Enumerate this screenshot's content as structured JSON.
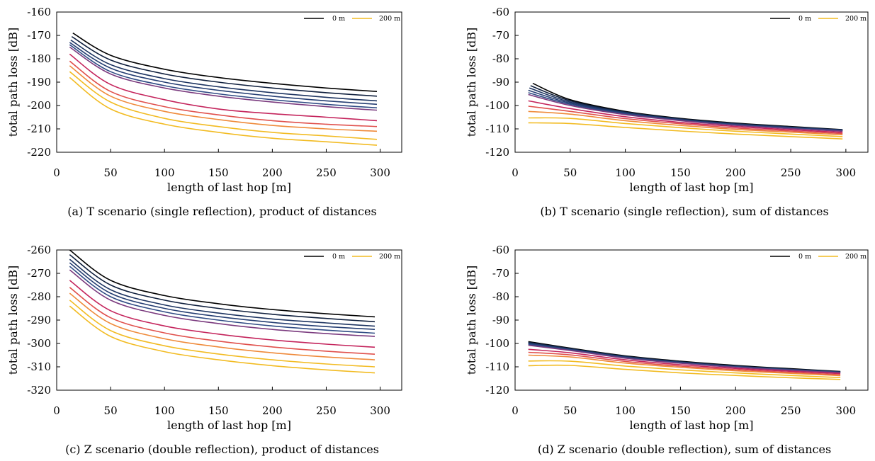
{
  "palette": [
    "#000000",
    "#0f1f3d",
    "#1d3461",
    "#253e73",
    "#2f4b84",
    "#7a3a7e",
    "#c4245c",
    "#e0504c",
    "#ef8a3a",
    "#f2bb22"
  ],
  "chart_data": [
    {
      "type": "line",
      "caption": "(a) T scenario (single reflection), product of distances",
      "xlabel": "length of last hop [m]",
      "ylabel": "total path loss [dB]",
      "xlim": [
        0,
        320
      ],
      "ylim": [
        -220,
        -160
      ],
      "xticks": [
        "0",
        "50",
        "100",
        "150",
        "200",
        "250",
        "300"
      ],
      "yticks": [
        "-160",
        "-170",
        "-180",
        "-190",
        "-200",
        "-210",
        "-220"
      ],
      "grid": false,
      "legend_position": "top-right",
      "legend": [
        "0 m",
        "200 m"
      ],
      "series": [
        {
          "x": [
            15,
            50,
            100,
            150,
            200,
            250,
            297
          ],
          "y": [
            -169,
            -178.5,
            -184.5,
            -188,
            -190.5,
            -192.5,
            -194
          ]
        },
        {
          "x": [
            14,
            50,
            100,
            150,
            200,
            250,
            297
          ],
          "y": [
            -170.5,
            -180.5,
            -186.5,
            -190,
            -192.5,
            -194.5,
            -196
          ]
        },
        {
          "x": [
            13,
            50,
            100,
            150,
            200,
            250,
            297
          ],
          "y": [
            -172,
            -182.5,
            -188.5,
            -192,
            -194.5,
            -196.5,
            -198
          ]
        },
        {
          "x": [
            12,
            50,
            100,
            150,
            200,
            250,
            297
          ],
          "y": [
            -173,
            -184,
            -190,
            -193.5,
            -196,
            -198,
            -199.5
          ]
        },
        {
          "x": [
            12,
            50,
            100,
            150,
            200,
            250,
            297
          ],
          "y": [
            -174,
            -185.5,
            -191.5,
            -195,
            -197.5,
            -199.5,
            -201
          ]
        },
        {
          "x": [
            12,
            50,
            100,
            150,
            200,
            250,
            297
          ],
          "y": [
            -175,
            -186.5,
            -192.5,
            -196,
            -198.5,
            -200.5,
            -202
          ]
        },
        {
          "x": [
            12,
            50,
            100,
            150,
            200,
            250,
            297
          ],
          "y": [
            -178,
            -191,
            -197.5,
            -201.5,
            -203.5,
            -205,
            -206.5
          ]
        },
        {
          "x": [
            12,
            50,
            100,
            150,
            200,
            250,
            297
          ],
          "y": [
            -181,
            -194,
            -200.5,
            -204,
            -206.5,
            -208,
            -209
          ]
        },
        {
          "x": [
            12,
            50,
            100,
            150,
            200,
            250,
            297
          ],
          "y": [
            -183,
            -196,
            -202.5,
            -206,
            -208.5,
            -210,
            -211
          ]
        },
        {
          "x": [
            12,
            50,
            100,
            150,
            200,
            250,
            297
          ],
          "y": [
            -185.5,
            -198.5,
            -205.5,
            -209,
            -211.5,
            -213,
            -214.5
          ]
        },
        {
          "x": [
            12,
            50,
            100,
            150,
            200,
            250,
            297
          ],
          "y": [
            -188,
            -201.5,
            -208,
            -211.5,
            -214,
            -215.5,
            -217
          ]
        }
      ]
    },
    {
      "type": "line",
      "caption": "(b) T scenario (single reflection), sum of distances",
      "xlabel": "length of last hop [m]",
      "ylabel": "total path loss [dB]",
      "xlim": [
        0,
        320
      ],
      "ylim": [
        -120,
        -60
      ],
      "xticks": [
        "0",
        "50",
        "100",
        "150",
        "200",
        "250",
        "300"
      ],
      "yticks": [
        "-60",
        "-70",
        "-80",
        "-90",
        "-100",
        "-110",
        "-120"
      ],
      "grid": false,
      "legend_position": "top-right",
      "legend": [
        "0 m",
        "200 m"
      ],
      "series": [
        {
          "x": [
            16,
            50,
            100,
            150,
            200,
            250,
            297
          ],
          "y": [
            -90.5,
            -97.5,
            -102.5,
            -105.5,
            -107.5,
            -109,
            -110.3
          ]
        },
        {
          "x": [
            14,
            50,
            100,
            150,
            200,
            250,
            297
          ],
          "y": [
            -91.5,
            -98,
            -102.8,
            -105.7,
            -107.7,
            -109.2,
            -110.4
          ]
        },
        {
          "x": [
            13,
            50,
            100,
            150,
            200,
            250,
            297
          ],
          "y": [
            -92.5,
            -98.5,
            -103,
            -105.9,
            -107.9,
            -109.3,
            -110.5
          ]
        },
        {
          "x": [
            12,
            50,
            100,
            150,
            200,
            250,
            297
          ],
          "y": [
            -93.5,
            -99,
            -103.3,
            -106.1,
            -108.1,
            -109.5,
            -110.6
          ]
        },
        {
          "x": [
            12,
            50,
            100,
            150,
            200,
            250,
            297
          ],
          "y": [
            -94.5,
            -99.5,
            -103.6,
            -106.3,
            -108.3,
            -109.7,
            -110.8
          ]
        },
        {
          "x": [
            12,
            50,
            100,
            150,
            200,
            250,
            297
          ],
          "y": [
            -95.3,
            -100,
            -103.9,
            -106.5,
            -108.5,
            -109.9,
            -111
          ]
        },
        {
          "x": [
            12,
            50,
            100,
            150,
            200,
            250,
            297
          ],
          "y": [
            -98,
            -101.3,
            -104.8,
            -107.2,
            -109,
            -110.4,
            -111.5
          ]
        },
        {
          "x": [
            12,
            50,
            100,
            150,
            200,
            250,
            297
          ],
          "y": [
            -100.3,
            -102.5,
            -105.6,
            -107.8,
            -109.6,
            -110.9,
            -112
          ]
        },
        {
          "x": [
            12,
            50,
            100,
            150,
            200,
            250,
            297
          ],
          "y": [
            -102.5,
            -103.7,
            -106.5,
            -108.5,
            -110.2,
            -111.4,
            -112.5
          ]
        },
        {
          "x": [
            12,
            50,
            100,
            150,
            200,
            250,
            297
          ],
          "y": [
            -105.3,
            -105.5,
            -107.7,
            -109.5,
            -111,
            -112.2,
            -113.3
          ]
        },
        {
          "x": [
            12,
            50,
            100,
            150,
            200,
            250,
            297
          ],
          "y": [
            -107.4,
            -107.7,
            -109.4,
            -110.9,
            -112.2,
            -113.3,
            -114.3
          ]
        }
      ]
    },
    {
      "type": "line",
      "caption": "(c) Z scenario (double reflection), product of distances",
      "xlabel": "length of last hop [m]",
      "ylabel": "total path loss [dB]",
      "xlim": [
        0,
        320
      ],
      "ylim": [
        -320,
        -260
      ],
      "xticks": [
        "0",
        "50",
        "100",
        "150",
        "200",
        "250",
        "300"
      ],
      "yticks": [
        "-260",
        "-270",
        "-280",
        "-290",
        "-300",
        "-310",
        "-320"
      ],
      "grid": false,
      "legend_position": "top-right",
      "legend": [
        "0 m",
        "200 m"
      ],
      "series": [
        {
          "x": [
            12,
            50,
            100,
            150,
            200,
            250,
            295
          ],
          "y": [
            -260,
            -273,
            -279.5,
            -283,
            -285.5,
            -287.3,
            -288.6
          ]
        },
        {
          "x": [
            12,
            50,
            100,
            150,
            200,
            250,
            295
          ],
          "y": [
            -262,
            -275,
            -281.5,
            -285,
            -287.5,
            -289.3,
            -290.7
          ]
        },
        {
          "x": [
            12,
            50,
            100,
            150,
            200,
            250,
            295
          ],
          "y": [
            -264,
            -277,
            -283.5,
            -287,
            -289.5,
            -291.2,
            -292.6
          ]
        },
        {
          "x": [
            12,
            50,
            100,
            150,
            200,
            250,
            295
          ],
          "y": [
            -265.5,
            -278.5,
            -285,
            -288.5,
            -291,
            -292.8,
            -294
          ]
        },
        {
          "x": [
            12,
            50,
            100,
            150,
            200,
            250,
            295
          ],
          "y": [
            -267,
            -280,
            -286.5,
            -290,
            -292.5,
            -294.3,
            -295.6
          ]
        },
        {
          "x": [
            12,
            50,
            100,
            150,
            200,
            250,
            295
          ],
          "y": [
            -268.5,
            -281.5,
            -288,
            -291.5,
            -294,
            -295.8,
            -297
          ]
        },
        {
          "x": [
            12,
            50,
            100,
            150,
            200,
            250,
            295
          ],
          "y": [
            -273,
            -286,
            -292.5,
            -296,
            -298.5,
            -300.3,
            -301.6
          ]
        },
        {
          "x": [
            12,
            50,
            100,
            150,
            200,
            250,
            295
          ],
          "y": [
            -276,
            -289,
            -295.5,
            -299,
            -301.5,
            -303.3,
            -304.6
          ]
        },
        {
          "x": [
            12,
            50,
            100,
            150,
            200,
            250,
            295
          ],
          "y": [
            -278.5,
            -291.5,
            -298,
            -301.5,
            -304,
            -305.8,
            -307
          ]
        },
        {
          "x": [
            12,
            50,
            100,
            150,
            200,
            250,
            295
          ],
          "y": [
            -281.5,
            -294.5,
            -301,
            -304.5,
            -307,
            -308.8,
            -310
          ]
        },
        {
          "x": [
            12,
            50,
            100,
            150,
            200,
            250,
            295
          ],
          "y": [
            -284,
            -297,
            -303.5,
            -307,
            -309.5,
            -311.3,
            -312.6
          ]
        }
      ]
    },
    {
      "type": "line",
      "caption": "(d) Z scenario (double reflection), sum of distances",
      "xlabel": "length of last hop [m]",
      "ylabel": "total path loss [dB]",
      "xlim": [
        0,
        320
      ],
      "ylim": [
        -120,
        -60
      ],
      "xticks": [
        "0",
        "50",
        "100",
        "150",
        "200",
        "250",
        "300"
      ],
      "yticks": [
        "-60",
        "-70",
        "-80",
        "-90",
        "-100",
        "-110",
        "-120"
      ],
      "grid": false,
      "legend_position": "top-right",
      "legend": [
        "0 m",
        "200 m"
      ],
      "series": [
        {
          "x": [
            12,
            50,
            100,
            150,
            200,
            250,
            295
          ],
          "y": [
            -99.2,
            -102,
            -105.3,
            -107.6,
            -109.4,
            -110.8,
            -112
          ]
        },
        {
          "x": [
            12,
            50,
            100,
            150,
            200,
            250,
            295
          ],
          "y": [
            -99.5,
            -102.2,
            -105.5,
            -107.8,
            -109.6,
            -111,
            -112.1
          ]
        },
        {
          "x": [
            12,
            50,
            100,
            150,
            200,
            250,
            295
          ],
          "y": [
            -99.8,
            -102.4,
            -105.7,
            -108,
            -109.8,
            -111.1,
            -112.2
          ]
        },
        {
          "x": [
            12,
            50,
            100,
            150,
            200,
            250,
            295
          ],
          "y": [
            -100.1,
            -102.6,
            -105.9,
            -108.1,
            -109.9,
            -111.2,
            -112.3
          ]
        },
        {
          "x": [
            12,
            50,
            100,
            150,
            200,
            250,
            295
          ],
          "y": [
            -100.4,
            -102.8,
            -106.1,
            -108.3,
            -110,
            -111.3,
            -112.4
          ]
        },
        {
          "x": [
            12,
            50,
            100,
            150,
            200,
            250,
            295
          ],
          "y": [
            -100.8,
            -103,
            -106.3,
            -108.5,
            -110.2,
            -111.5,
            -112.5
          ]
        },
        {
          "x": [
            12,
            50,
            100,
            150,
            200,
            250,
            295
          ],
          "y": [
            -102.5,
            -104,
            -107,
            -109.1,
            -110.7,
            -111.9,
            -112.9
          ]
        },
        {
          "x": [
            12,
            50,
            100,
            150,
            200,
            250,
            295
          ],
          "y": [
            -103.8,
            -104.9,
            -107.7,
            -109.7,
            -111.2,
            -112.4,
            -113.4
          ]
        },
        {
          "x": [
            12,
            50,
            100,
            150,
            200,
            250,
            295
          ],
          "y": [
            -105,
            -105.8,
            -108.4,
            -110.2,
            -111.7,
            -112.8,
            -113.8
          ]
        },
        {
          "x": [
            12,
            50,
            100,
            150,
            200,
            250,
            295
          ],
          "y": [
            -107.5,
            -107.6,
            -109.7,
            -111.3,
            -112.6,
            -113.7,
            -114.6
          ]
        },
        {
          "x": [
            12,
            50,
            100,
            150,
            200,
            250,
            295
          ],
          "y": [
            -109.5,
            -109.4,
            -111.1,
            -112.6,
            -113.7,
            -114.7,
            -115.4
          ]
        }
      ]
    }
  ]
}
